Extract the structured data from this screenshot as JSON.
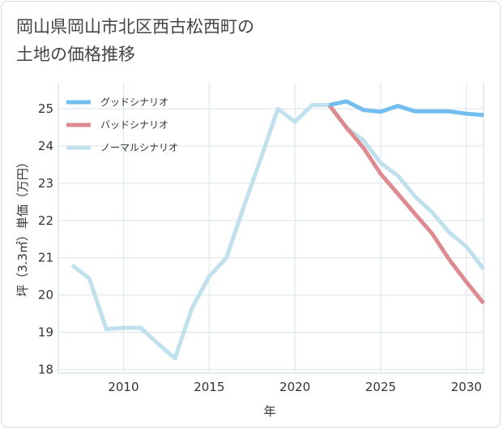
{
  "chart_data": {
    "type": "line",
    "title": "岡山県岡山市北区西古松西町の\n土地の価格推移",
    "xlabel": "年",
    "ylabel": "坪（3.3㎡）単価（万円）",
    "xlim": [
      2006.2,
      2031
    ],
    "ylim": [
      17.9,
      25.7
    ],
    "x_ticks": [
      2010,
      2015,
      2020,
      2025,
      2030
    ],
    "y_ticks": [
      18,
      19,
      20,
      21,
      22,
      23,
      24,
      25
    ],
    "grid": true,
    "legend_position": "top-left",
    "series": [
      {
        "name": "グッドシナリオ",
        "color": "#72bdf0",
        "x": [
          2022,
          2023,
          2024,
          2025,
          2026,
          2027,
          2028,
          2029,
          2030,
          2031
        ],
        "values": [
          25.1,
          25.2,
          24.97,
          24.92,
          25.08,
          24.93,
          24.93,
          24.93,
          24.87,
          24.83
        ]
      },
      {
        "name": "バッドシナリオ",
        "color": "#dd8a90",
        "x": [
          2022,
          2023,
          2024,
          2025,
          2026,
          2027,
          2028,
          2029,
          2030,
          2031
        ],
        "values": [
          25.1,
          24.5,
          23.95,
          23.25,
          22.72,
          22.18,
          21.65,
          20.95,
          20.35,
          19.78
        ]
      },
      {
        "name": "ノーマルシナリオ",
        "color": "#bfe0ec",
        "x": [
          2007,
          2008,
          2009,
          2010,
          2011,
          2012,
          2013,
          2014,
          2015,
          2016,
          2017,
          2018,
          2019,
          2020,
          2021,
          2022,
          2023,
          2024,
          2025,
          2026,
          2027,
          2028,
          2029,
          2030,
          2031
        ],
        "values": [
          20.8,
          20.45,
          19.08,
          19.12,
          19.12,
          18.7,
          18.3,
          19.65,
          20.5,
          21.0,
          22.35,
          23.65,
          25.0,
          24.65,
          25.1,
          25.1,
          24.5,
          24.15,
          23.55,
          23.2,
          22.65,
          22.22,
          21.68,
          21.3,
          20.7
        ]
      }
    ]
  }
}
